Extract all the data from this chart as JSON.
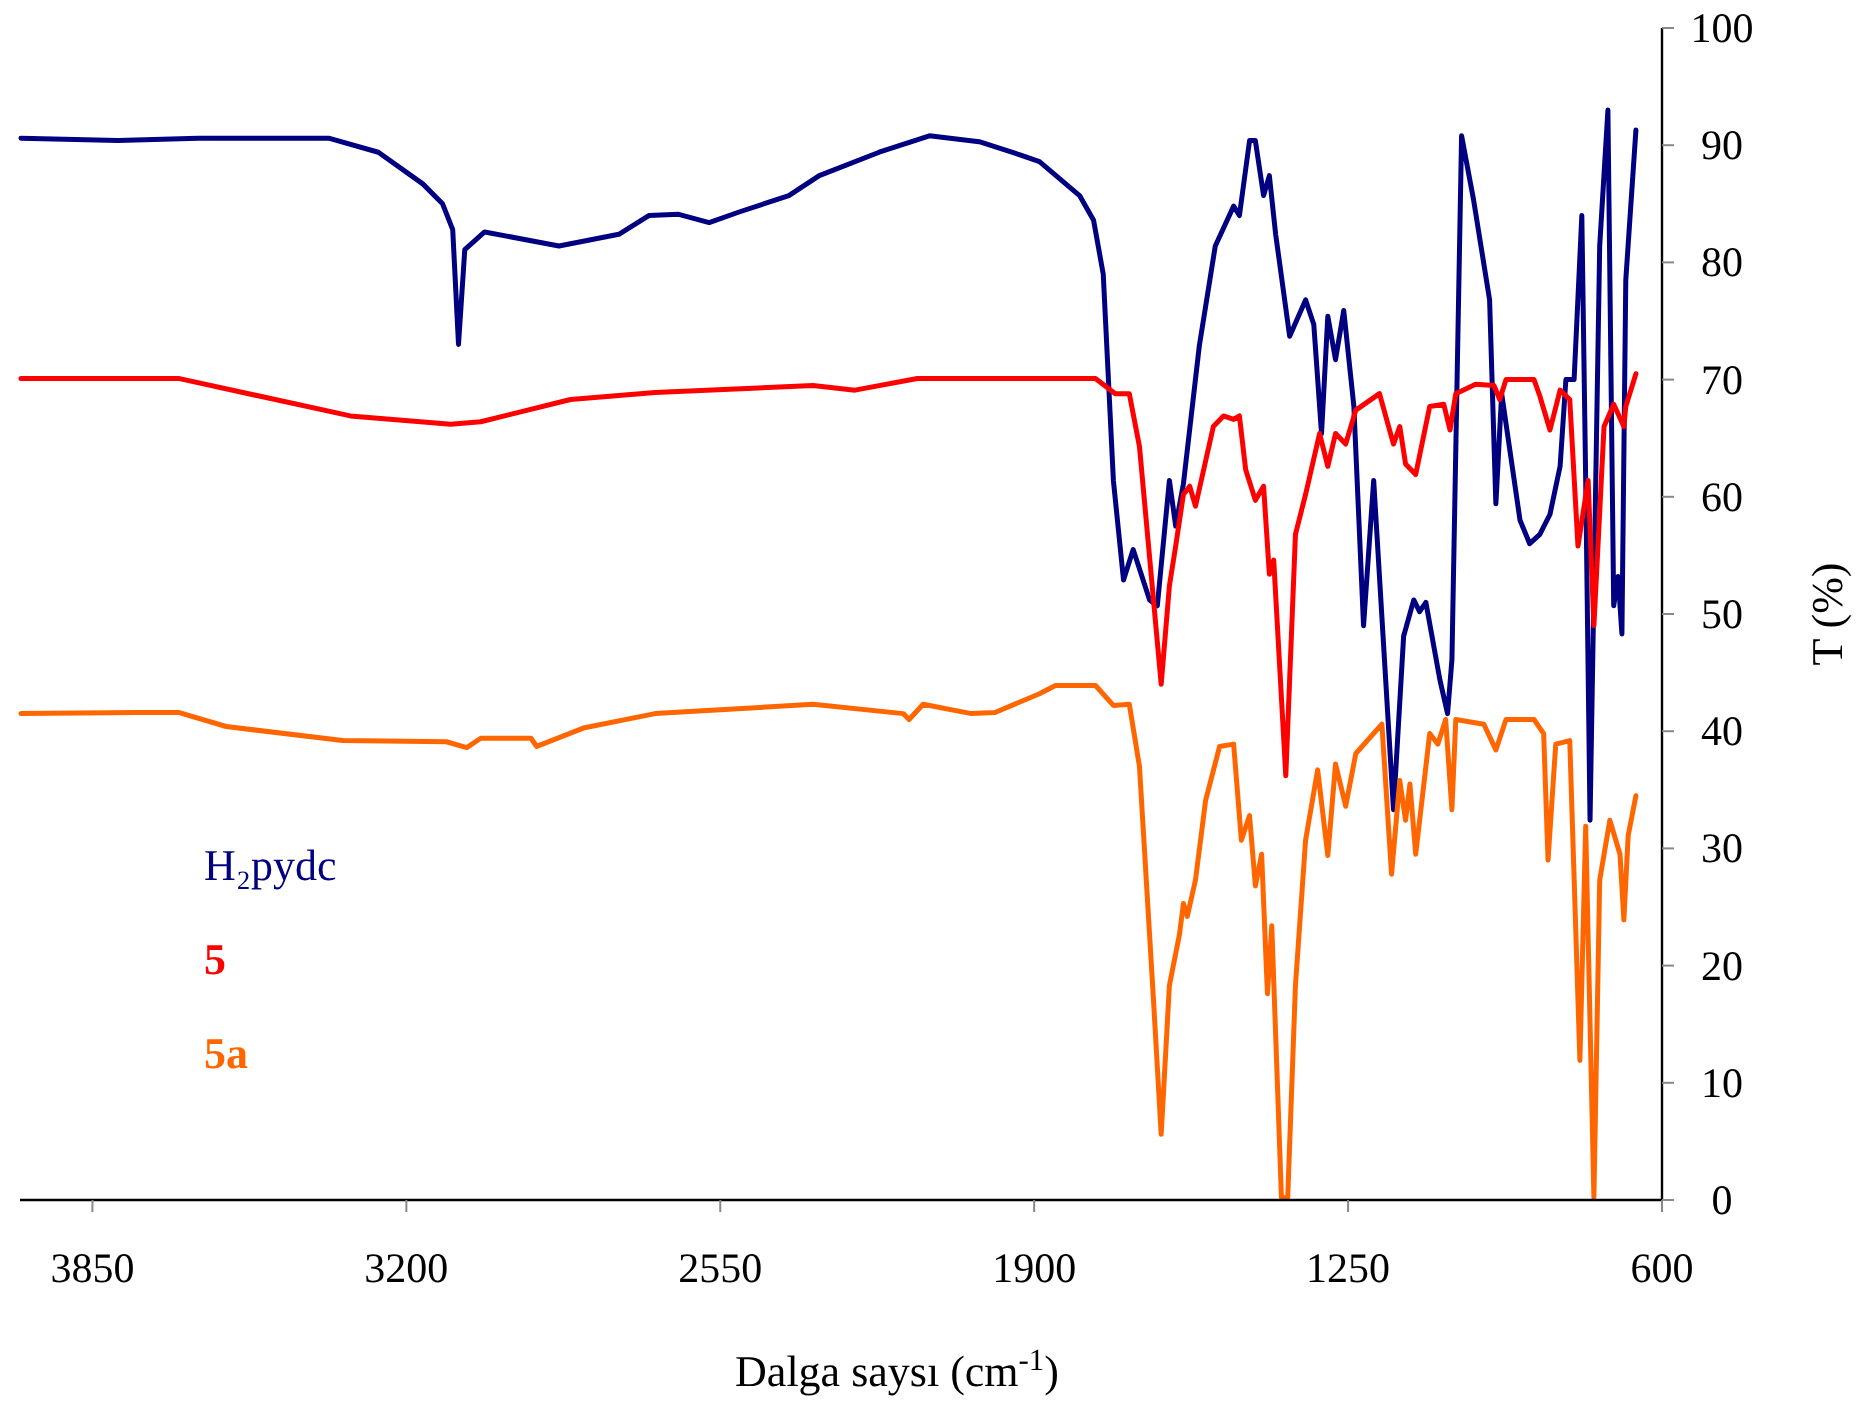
{
  "chart_data": {
    "type": "line",
    "xlabel": "Dalga saysı (cm$^{-1}$)",
    "ylabel": "T (%)",
    "xlim": [
      4000,
      600
    ],
    "xticks": [
      3850,
      3200,
      2550,
      1900,
      1250,
      600
    ],
    "ylim": [
      0,
      100
    ],
    "yticks": [
      0,
      10,
      20,
      30,
      40,
      50,
      60,
      70,
      80,
      90,
      100
    ],
    "grid": false,
    "legend": "bottom left",
    "marker": "none",
    "line_style": "solid",
    "series": [
      {
        "name": "H₂pydc",
        "color": "#000080",
        "x": [
          3998,
          3797,
          3631,
          3361,
          3258,
          3166,
          3125,
          3104,
          3092,
          3079,
          3038,
          2884,
          2760,
          2698,
          2636,
          2573,
          2511,
          2408,
          2345,
          2221,
          2117,
          2014,
          1931,
          1889,
          1806,
          1777,
          1757,
          1736,
          1715,
          1695,
          1661,
          1645,
          1620,
          1607,
          1591,
          1558,
          1525,
          1487,
          1475,
          1454,
          1442,
          1425,
          1413,
          1400,
          1371,
          1338,
          1321,
          1305,
          1292,
          1276,
          1259,
          1238,
          1218,
          1197,
          1156,
          1135,
          1114,
          1102,
          1089,
          1060,
          1044,
          1035,
          1015,
          990,
          957,
          944,
          932,
          894,
          874,
          853,
          832,
          811,
          799,
          782,
          766,
          758,
          749,
          729,
          712,
          700,
          691,
          683,
          675,
          654
        ],
        "values": [
          90.6,
          90.4,
          90.6,
          90.6,
          89.4,
          86.7,
          85.0,
          82.8,
          73.0,
          81.1,
          82.6,
          81.4,
          82.4,
          84.0,
          84.1,
          83.4,
          84.3,
          85.7,
          87.4,
          89.4,
          90.8,
          90.3,
          89.2,
          88.6,
          85.7,
          83.6,
          79.0,
          61.4,
          52.9,
          55.5,
          51.2,
          50.7,
          61.4,
          57.5,
          61.1,
          72.9,
          81.4,
          84.8,
          84.0,
          90.4,
          90.4,
          85.7,
          87.4,
          82.4,
          73.7,
          76.8,
          74.7,
          65.4,
          75.4,
          71.7,
          75.9,
          67.7,
          49.0,
          61.4,
          33.3,
          48.1,
          51.2,
          50.2,
          51.0,
          44.4,
          41.5,
          46.1,
          90.8,
          85.3,
          76.8,
          59.4,
          68.8,
          58.0,
          56.0,
          56.8,
          58.5,
          62.6,
          70.0,
          70.0,
          84.0,
          61.4,
          32.4,
          81.4,
          93.0,
          50.7,
          53.2,
          48.3,
          78.5,
          91.3
        ]
      },
      {
        "name": "5",
        "color": "#ff0000",
        "x": [
          3998,
          3672,
          3316,
          3108,
          3046,
          2860,
          2685,
          2358,
          2271,
          2142,
          1889,
          1844,
          1773,
          1732,
          1703,
          1682,
          1637,
          1620,
          1607,
          1591,
          1578,
          1566,
          1529,
          1508,
          1487,
          1475,
          1462,
          1442,
          1425,
          1413,
          1404,
          1379,
          1359,
          1338,
          1309,
          1292,
          1276,
          1255,
          1234,
          1185,
          1156,
          1143,
          1131,
          1110,
          1081,
          1052,
          1039,
          1027,
          986,
          948,
          936,
          923,
          865,
          853,
          832,
          811,
          791,
          774,
          753,
          741,
          720,
          700,
          679,
          675,
          654
        ],
        "values": [
          70.1,
          70.1,
          66.9,
          66.2,
          66.4,
          68.3,
          68.9,
          69.5,
          69.1,
          70.1,
          70.1,
          70.1,
          70.1,
          68.8,
          68.8,
          64.3,
          44.0,
          52.4,
          55.8,
          60.2,
          60.9,
          59.2,
          66.0,
          66.9,
          66.6,
          66.9,
          62.3,
          59.7,
          60.9,
          53.4,
          54.6,
          36.2,
          56.8,
          60.2,
          65.4,
          62.6,
          65.4,
          64.5,
          67.4,
          68.8,
          64.5,
          66.0,
          62.8,
          61.9,
          67.7,
          67.9,
          65.7,
          68.8,
          69.6,
          69.5,
          68.3,
          70.0,
          70.0,
          68.6,
          65.7,
          69.1,
          68.3,
          55.8,
          61.4,
          49.0,
          66.0,
          67.9,
          66.0,
          67.7,
          70.5
        ]
      },
      {
        "name": "5a",
        "color": "#ff6600",
        "x": [
          3998,
          3759,
          3672,
          3573,
          3332,
          3117,
          3075,
          3046,
          2942,
          2930,
          2831,
          2685,
          2358,
          2171,
          2159,
          2130,
          2030,
          1981,
          1889,
          1856,
          1773,
          1736,
          1703,
          1682,
          1653,
          1637,
          1620,
          1599,
          1591,
          1583,
          1566,
          1545,
          1516,
          1487,
          1471,
          1454,
          1442,
          1429,
          1417,
          1408,
          1388,
          1375,
          1359,
          1338,
          1313,
          1292,
          1276,
          1255,
          1234,
          1180,
          1160,
          1143,
          1131,
          1122,
          1110,
          1081,
          1064,
          1048,
          1035,
          1027,
          969,
          944,
          923,
          865,
          845,
          836,
          820,
          791,
          770,
          758,
          741,
          729,
          708,
          687,
          679,
          670,
          654
        ],
        "values": [
          41.5,
          41.6,
          41.6,
          40.4,
          39.2,
          39.1,
          38.6,
          39.4,
          39.4,
          38.7,
          40.3,
          41.5,
          42.3,
          41.5,
          41.0,
          42.3,
          41.5,
          41.6,
          43.2,
          43.9,
          43.9,
          42.2,
          42.3,
          37.0,
          17.1,
          5.6,
          18.3,
          22.7,
          25.3,
          24.2,
          27.3,
          34.1,
          38.7,
          38.9,
          30.7,
          32.8,
          26.8,
          29.5,
          17.6,
          23.4,
          0.2,
          0.2,
          18.3,
          30.7,
          36.7,
          29.4,
          37.2,
          33.6,
          38.1,
          40.6,
          27.8,
          35.8,
          32.4,
          35.5,
          29.5,
          39.8,
          38.9,
          41.0,
          33.3,
          41.0,
          40.6,
          38.4,
          41.0,
          41.0,
          39.8,
          29.0,
          38.9,
          39.2,
          11.9,
          31.9,
          0.2,
          27.3,
          32.4,
          29.5,
          23.9,
          31.1,
          34.5
        ]
      }
    ]
  }
}
